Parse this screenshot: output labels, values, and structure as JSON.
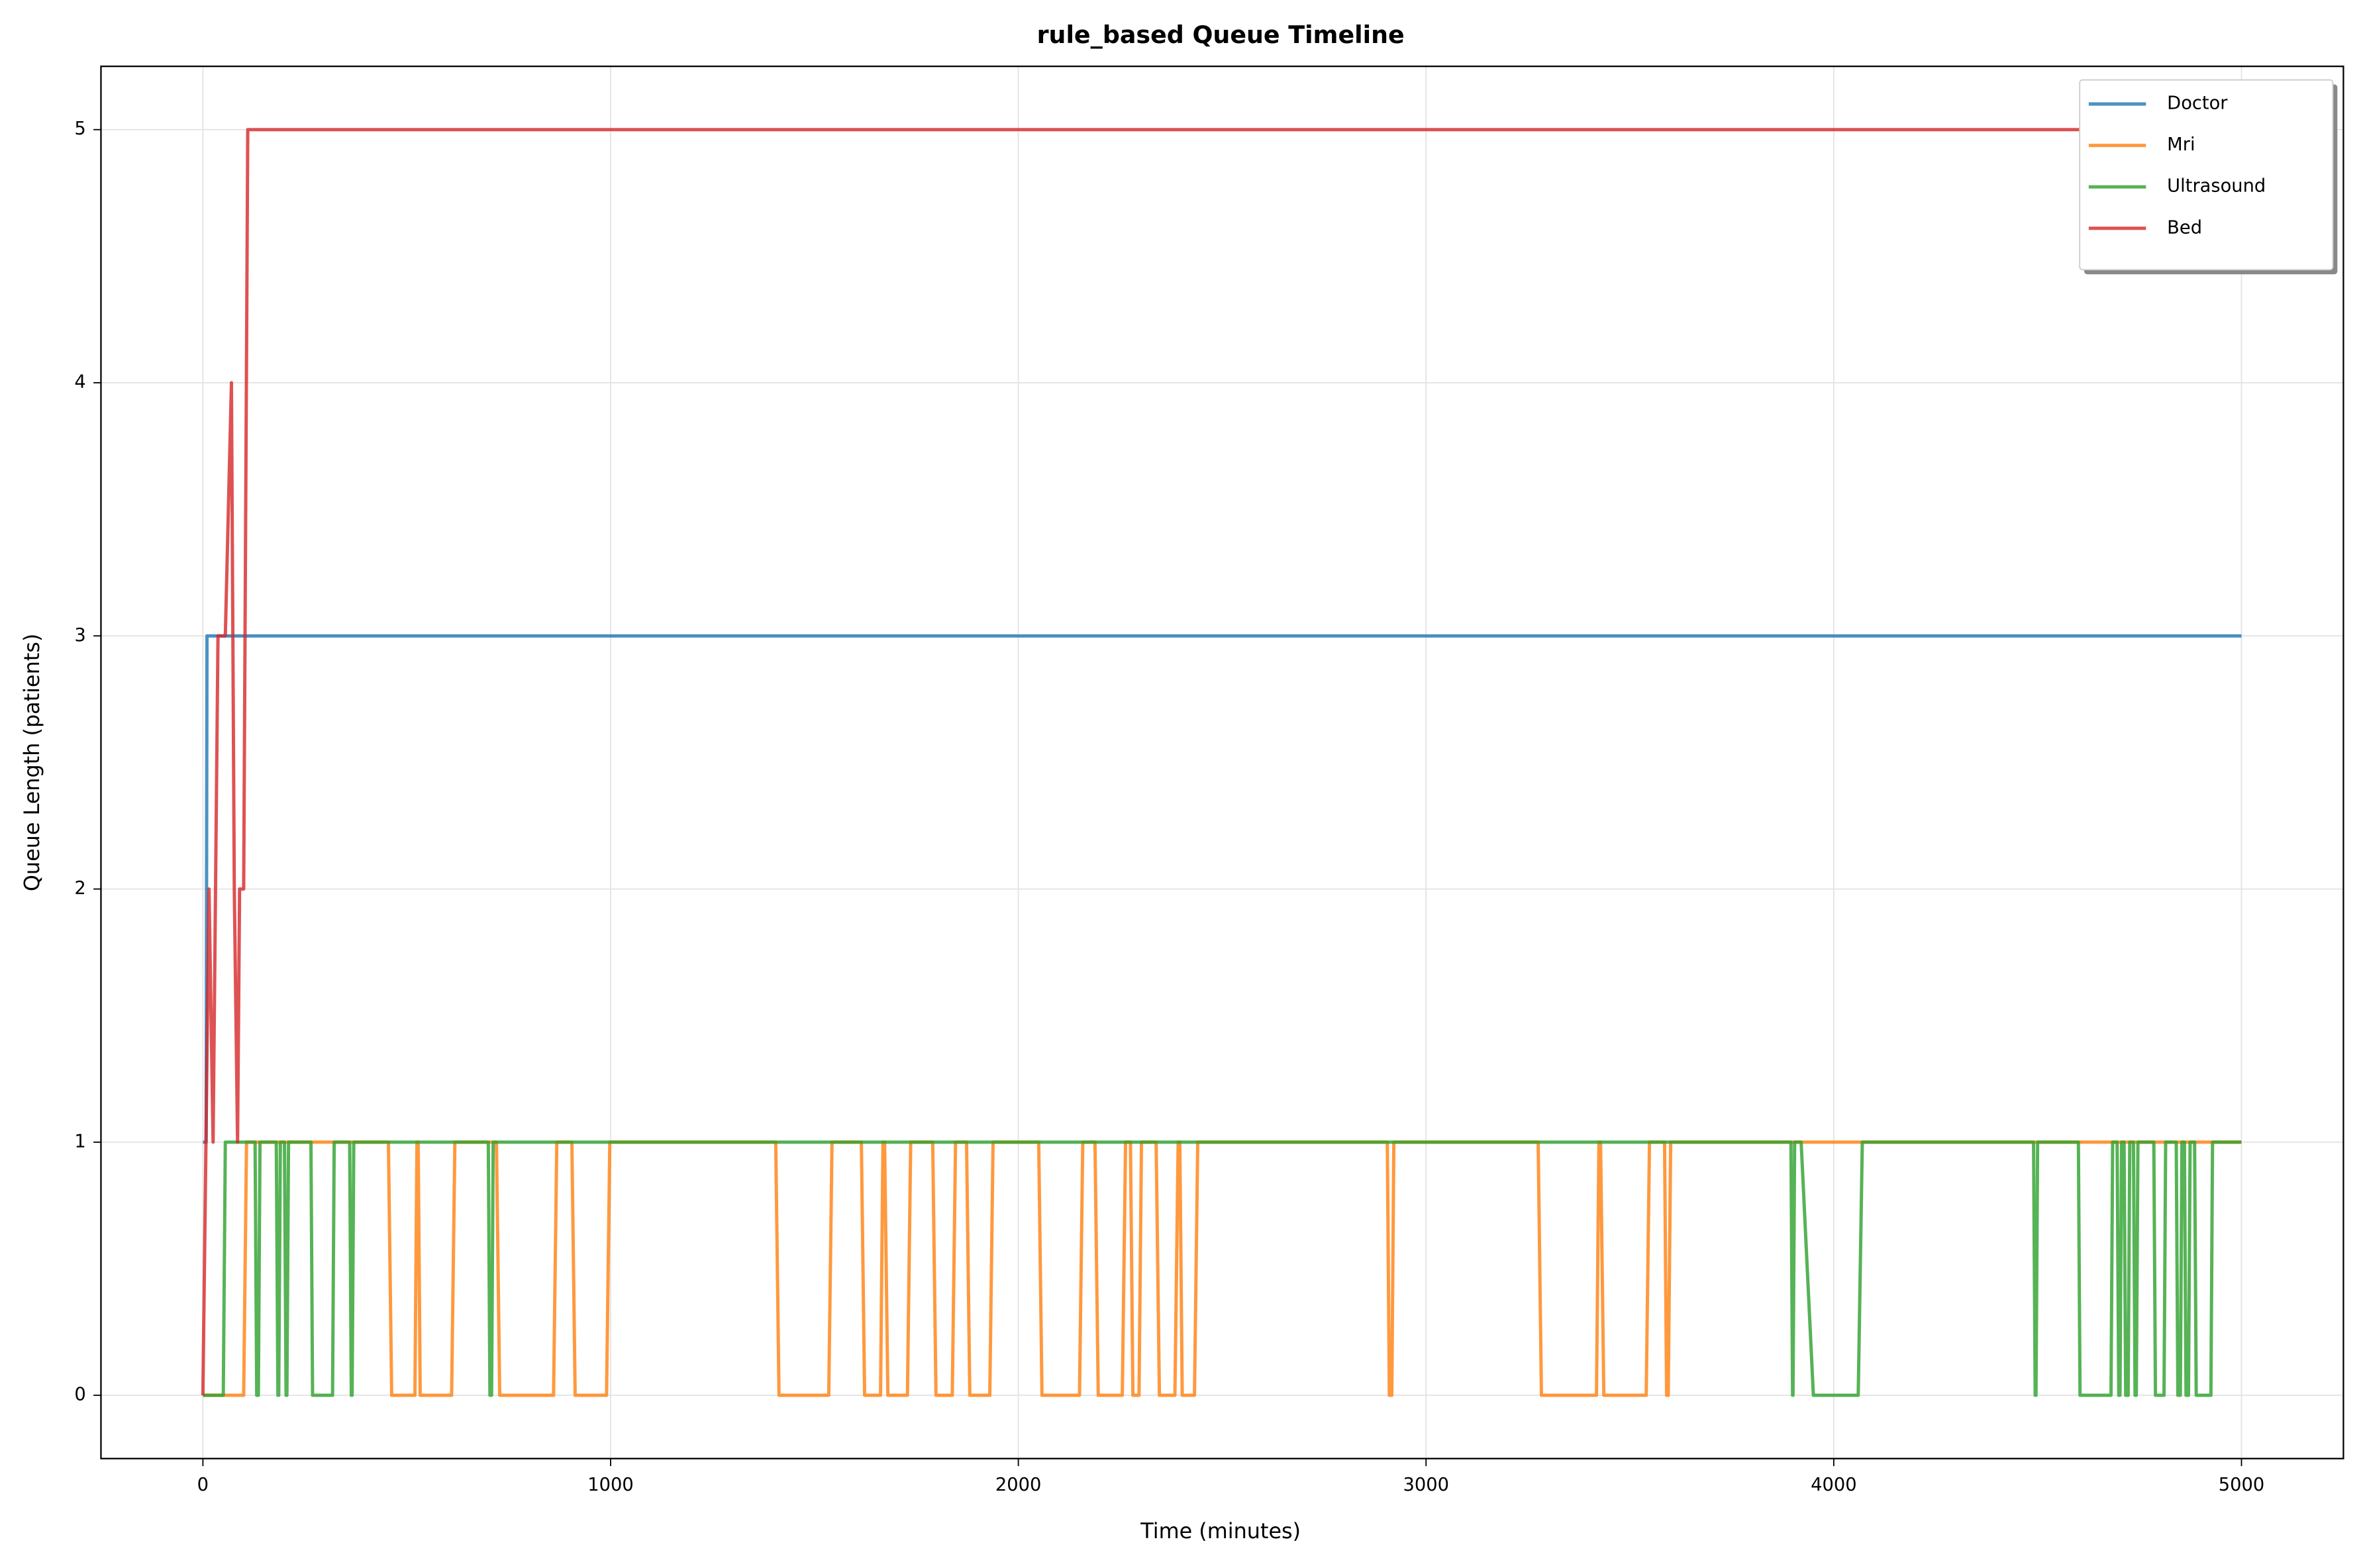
{
  "chart_data": {
    "type": "line",
    "title": "rule_based Queue Timeline",
    "x_label": "Time (minutes)",
    "y_label": "Queue Length (patients)",
    "xlim": [
      -250,
      5250
    ],
    "ylim": [
      -0.25,
      5.25
    ],
    "xticks": [
      0,
      1000,
      2000,
      3000,
      4000,
      5000
    ],
    "yticks": [
      0,
      1,
      2,
      3,
      4,
      5
    ],
    "grid": true,
    "legend": "upper right",
    "series": [
      {
        "name": "Doctor",
        "color": "#1f77b4",
        "x": [
          0,
          8,
          10,
          5000
        ],
        "values": [
          1,
          1,
          3,
          3
        ]
      },
      {
        "name": "Mri",
        "color": "#ff7f0e",
        "x": [
          0,
          100,
          107,
          455,
          463,
          520,
          525,
          528,
          533,
          610,
          618,
          720,
          728,
          860,
          868,
          905,
          913,
          990,
          998,
          1405,
          1413,
          1535,
          1543,
          1615,
          1623,
          1662,
          1668,
          1672,
          1680,
          1728,
          1736,
          1790,
          1798,
          1838,
          1846,
          1873,
          1881,
          1930,
          1938,
          2050,
          2058,
          2150,
          2158,
          2188,
          2196,
          2255,
          2263,
          2275,
          2281,
          2296,
          2302,
          2338,
          2346,
          2384,
          2392,
          2396,
          2402,
          2432,
          2440,
          2905,
          2910,
          2916,
          2921,
          3275,
          3283,
          3418,
          3424,
          3428,
          3436,
          3540,
          3548,
          3585,
          3590,
          3594,
          3600,
          5000
        ],
        "values": [
          0,
          0,
          1,
          1,
          0,
          0,
          1,
          1,
          0,
          0,
          1,
          1,
          0,
          0,
          1,
          1,
          0,
          0,
          1,
          1,
          0,
          0,
          1,
          1,
          0,
          0,
          1,
          1,
          0,
          0,
          1,
          1,
          0,
          0,
          1,
          1,
          0,
          0,
          1,
          1,
          0,
          0,
          1,
          1,
          0,
          0,
          1,
          1,
          0,
          0,
          1,
          1,
          0,
          0,
          1,
          1,
          0,
          0,
          1,
          1,
          0,
          0,
          1,
          1,
          0,
          0,
          1,
          1,
          0,
          0,
          1,
          1,
          0,
          0,
          1,
          1
        ]
      },
      {
        "name": "Ultrasound",
        "color": "#2ca02c",
        "x": [
          0,
          50,
          55,
          128,
          132,
          136,
          140,
          180,
          184,
          186,
          190,
          200,
          204,
          206,
          210,
          265,
          269,
          318,
          322,
          360,
          364,
          366,
          370,
          700,
          704,
          708,
          712,
          3895,
          3899,
          3900,
          3904,
          3920,
          3950,
          4060,
          4070,
          4490,
          4494,
          4496,
          4500,
          4600,
          4604,
          4680,
          4684,
          4695,
          4699,
          4702,
          4706,
          4712,
          4716,
          4722,
          4726,
          4735,
          4739,
          4742,
          4746,
          4785,
          4789,
          4810,
          4814,
          4840,
          4844,
          4850,
          4854,
          4860,
          4864,
          4870,
          4874,
          4885,
          4889,
          4925,
          4929,
          5000
        ],
        "values": [
          0,
          0,
          1,
          1,
          0,
          0,
          1,
          1,
          0,
          0,
          1,
          1,
          0,
          0,
          1,
          1,
          0,
          0,
          1,
          1,
          0,
          0,
          1,
          1,
          0,
          0,
          1,
          1,
          0,
          0,
          1,
          1,
          0,
          0,
          1,
          1,
          0,
          0,
          1,
          1,
          0,
          0,
          1,
          1,
          0,
          0,
          1,
          1,
          0,
          0,
          1,
          1,
          0,
          0,
          1,
          1,
          0,
          0,
          1,
          1,
          0,
          0,
          1,
          1,
          0,
          0,
          1,
          1,
          0,
          0,
          1,
          1
        ]
      },
      {
        "name": "Bed",
        "color": "#d62728",
        "x": [
          0,
          15,
          25,
          37,
          55,
          70,
          77,
          85,
          90,
          100,
          110,
          5000
        ],
        "values": [
          0,
          2,
          1,
          3,
          3,
          4,
          2,
          1,
          2,
          2,
          5,
          5
        ]
      }
    ]
  }
}
